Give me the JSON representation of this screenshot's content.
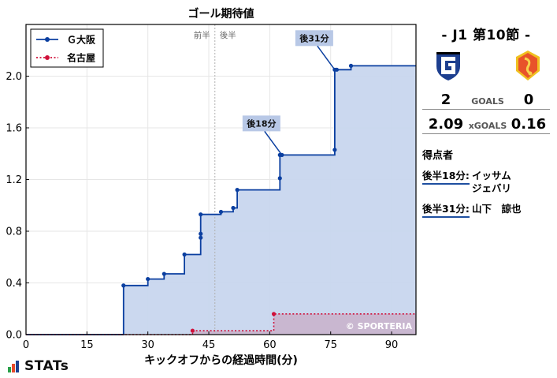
{
  "chart_data": {
    "type": "line",
    "title": "ゴール期待値",
    "xlabel": "キックオフからの経過時間(分)",
    "ylabel": "",
    "xlim": [
      0,
      96
    ],
    "ylim": [
      0,
      2.4
    ],
    "xticks": [
      0,
      15,
      30,
      45,
      60,
      75,
      90
    ],
    "yticks": [
      0.0,
      0.4,
      0.8,
      1.2,
      1.6,
      2.0
    ],
    "ytick_labels": [
      "0.0",
      "0.4",
      "0.8",
      "1.2",
      "1.6",
      "2.0"
    ],
    "grid": true,
    "legend_position": "top-left",
    "halftime": {
      "x": 46.5,
      "label_first": "前半",
      "label_second": "後半"
    },
    "watermark": "© SPORTERIA",
    "series": [
      {
        "name": "Ｇ大阪",
        "color": "#0b3fa0",
        "fill": "#c8d6ee",
        "style": "step-solid",
        "points": [
          [
            24,
            0.38
          ],
          [
            30,
            0.43
          ],
          [
            34,
            0.47
          ],
          [
            39,
            0.62
          ],
          [
            43,
            0.75
          ],
          [
            43,
            0.78
          ],
          [
            43,
            0.93
          ],
          [
            48,
            0.95
          ],
          [
            51,
            0.98
          ],
          [
            52,
            1.12
          ],
          [
            62.5,
            1.21
          ],
          [
            62.5,
            1.39
          ],
          [
            63,
            1.39
          ],
          [
            76,
            1.43
          ],
          [
            76,
            2.05
          ],
          [
            76.5,
            2.05
          ],
          [
            80,
            2.08
          ]
        ]
      },
      {
        "name": "名古屋",
        "color": "#d0103a",
        "fill": "#c9b4cc",
        "style": "step-dotted",
        "points": [
          [
            41,
            0.03
          ],
          [
            61,
            0.16
          ]
        ]
      }
    ],
    "annotations": [
      {
        "text": "後18分",
        "x": 63,
        "y": 1.39
      },
      {
        "text": "後31分",
        "x": 76,
        "y": 2.05
      }
    ]
  },
  "match": {
    "title": "-  J1 第10節  -",
    "goals_label": "GOALS",
    "xgoals_label": "xGOALS",
    "home_goals": "2",
    "away_goals": "0",
    "home_xg": "2.09",
    "away_xg": "0.16",
    "home_color": "#1d3f8f",
    "away_color": "#e8532a"
  },
  "scorers": {
    "heading": "得点者",
    "items": [
      {
        "time": "後半18分:",
        "name_line1": "イッサム",
        "name_line2": "ジェバリ"
      },
      {
        "time": "後半31分:",
        "name_line1": "山下　諒也",
        "name_line2": ""
      }
    ]
  },
  "brand": {
    "text": "STATs"
  }
}
